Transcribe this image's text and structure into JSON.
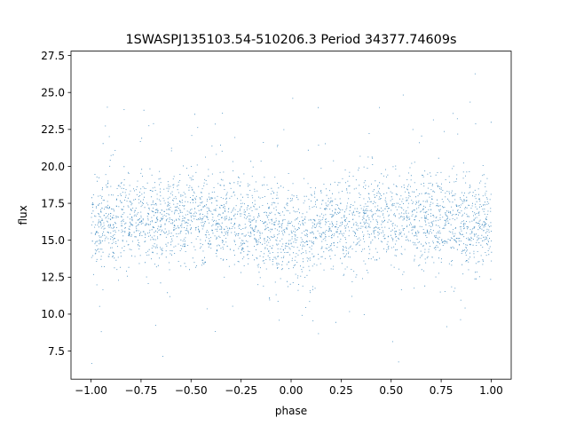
{
  "chart_data": {
    "type": "scatter",
    "title": "1SWASPJ135103.54-510206.3 Period 34377.74609s",
    "xlabel": "phase",
    "ylabel": "flux",
    "xlim": [
      -1.1,
      1.1
    ],
    "ylim": [
      5.6,
      27.8
    ],
    "xticks": [
      -1.0,
      -0.75,
      -0.5,
      -0.25,
      0.0,
      0.25,
      0.5,
      0.75,
      1.0
    ],
    "xtick_labels": [
      "−1.00",
      "−0.75",
      "−0.50",
      "−0.25",
      "0.00",
      "0.25",
      "0.50",
      "0.75",
      "1.00"
    ],
    "yticks": [
      7.5,
      10.0,
      12.5,
      15.0,
      17.5,
      20.0,
      22.5,
      25.0,
      27.5
    ],
    "ytick_labels": [
      "7.5",
      "10.0",
      "12.5",
      "15.0",
      "17.5",
      "20.0",
      "22.5",
      "25.0",
      "27.5"
    ],
    "grid": false,
    "series": [
      {
        "color": "#1f77b4",
        "x_range": [
          -1.0,
          1.0
        ],
        "y_median": 16.2,
        "y_core_range": [
          13.5,
          19.5
        ],
        "y_full_range": [
          6.6,
          26.4
        ],
        "sample_points": [
          [
            -1.0,
            16.1
          ],
          [
            -0.9,
            16.3
          ],
          [
            -0.8,
            16.4
          ],
          [
            -0.7,
            16.5
          ],
          [
            -0.6,
            16.6
          ],
          [
            -0.5,
            16.5
          ],
          [
            -0.4,
            16.4
          ],
          [
            -0.3,
            16.3
          ],
          [
            -0.2,
            16.0
          ],
          [
            -0.1,
            15.6
          ],
          [
            0.0,
            15.3
          ],
          [
            0.1,
            15.6
          ],
          [
            0.2,
            16.0
          ],
          [
            0.3,
            16.3
          ],
          [
            0.4,
            16.5
          ],
          [
            0.5,
            16.6
          ],
          [
            0.6,
            16.5
          ],
          [
            0.7,
            16.4
          ],
          [
            0.8,
            16.3
          ],
          [
            0.9,
            16.2
          ],
          [
            1.0,
            16.1
          ]
        ]
      }
    ]
  }
}
